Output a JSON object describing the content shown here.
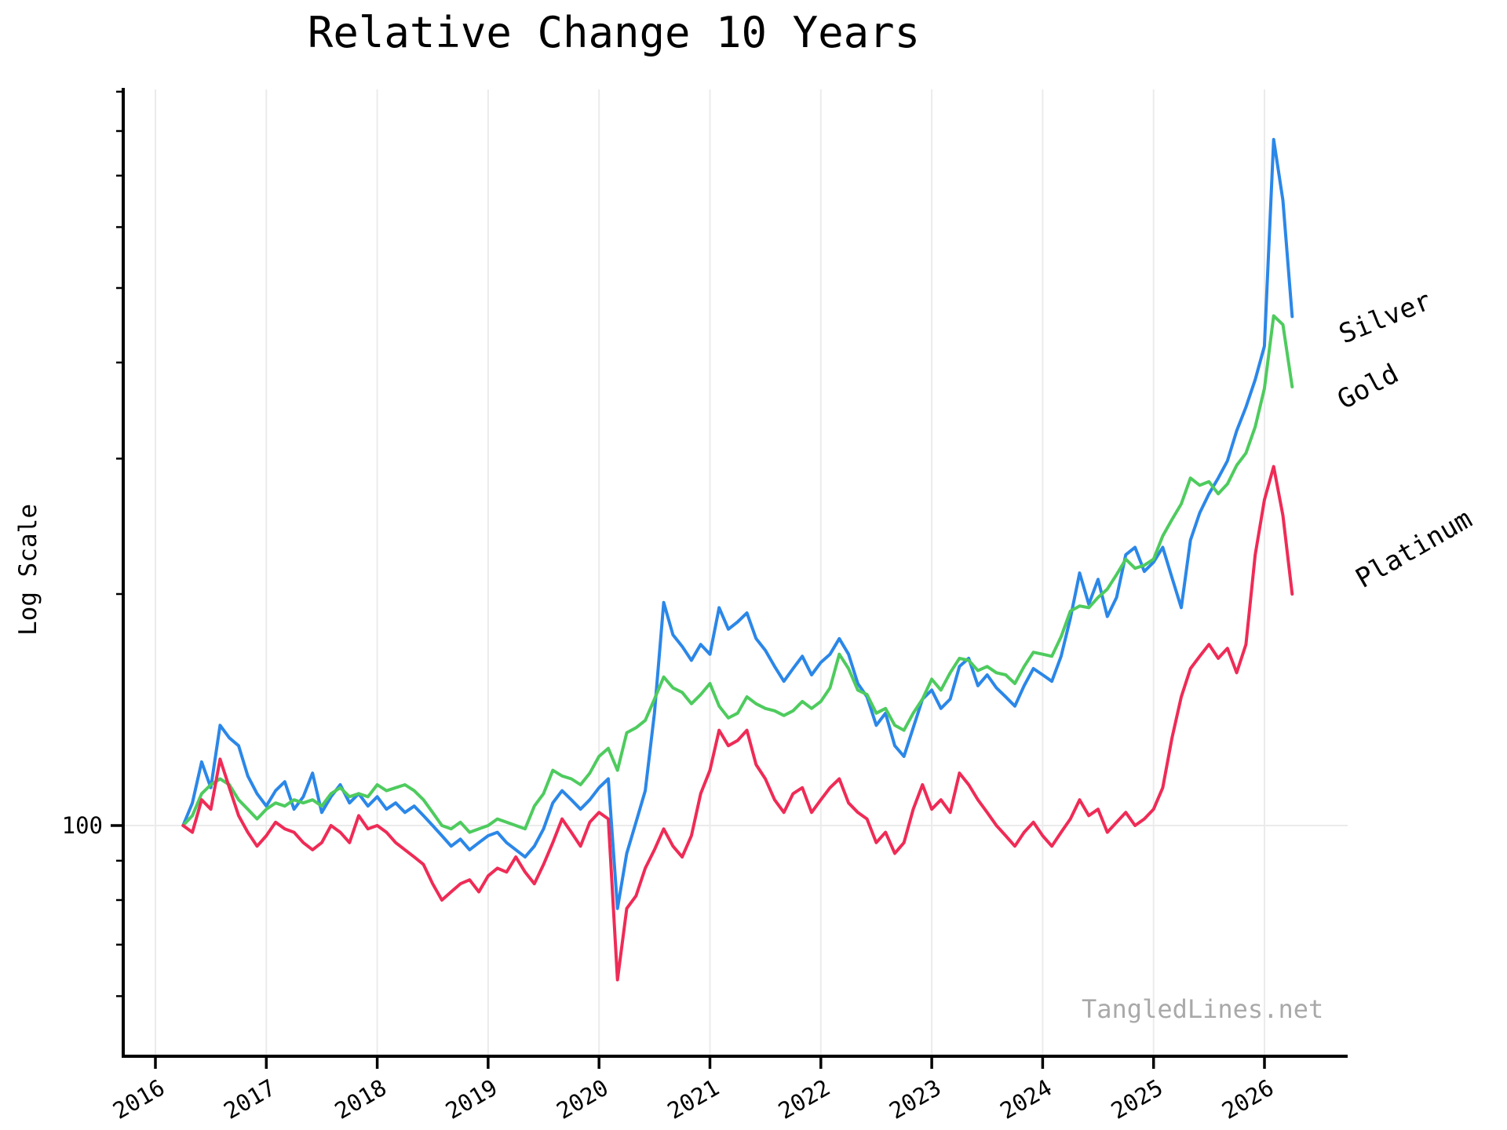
{
  "title": "Relative Change 10 Years",
  "watermark": "TangledLines.net",
  "y_axis": {
    "label": "Log Scale",
    "scale": "log",
    "major_tick_label": "100",
    "major_ticks": [
      100
    ],
    "minor_ticks": [
      50,
      60,
      70,
      80,
      90,
      200,
      300,
      400,
      500,
      600,
      700,
      800,
      900
    ],
    "range": [
      50,
      905
    ]
  },
  "x_axis": {
    "tick_labels": [
      "2016",
      "2017",
      "2018",
      "2019",
      "2020",
      "2021",
      "2022",
      "2023",
      "2024",
      "2025",
      "2026"
    ],
    "rotation_deg": -30,
    "range": [
      2015.62,
      2026.74
    ]
  },
  "colors": {
    "silver": "#2B87E8",
    "gold": "#4ECB5E",
    "platinum": "#EF2B56",
    "grid": "#EBEBEB",
    "axis": "#000000",
    "watermark": "#A9A9A9"
  },
  "chart_data": {
    "type": "line",
    "title": "Relative Change 10 Years",
    "xlabel": "",
    "ylabel": "Log Scale",
    "yscale": "log",
    "grid": "major-ticks-only",
    "legend_position": "right-of-plot, rotated labels at line ends",
    "xlim": [
      2015.62,
      2026.74
    ],
    "ylim": [
      50,
      905
    ],
    "x_ticks": [
      2016,
      2017,
      2018,
      2019,
      2020,
      2021,
      2022,
      2023,
      2024,
      2025,
      2026
    ],
    "y_ticks_labeled": [
      100
    ],
    "y_ticks_minor": [
      50,
      60,
      70,
      80,
      90,
      200,
      300,
      400,
      500,
      600,
      700,
      800,
      900
    ],
    "x_start": 2016.25,
    "x_step": 0.08333,
    "index_base": 100,
    "series": [
      {
        "name": "Silver",
        "color": "#2B87E8",
        "values": [
          100,
          107,
          121,
          112,
          135,
          130,
          127,
          116,
          110,
          106,
          111,
          114,
          105,
          109,
          117,
          104,
          109,
          113,
          107,
          110,
          106,
          109,
          105,
          107,
          104,
          106,
          103,
          100,
          97,
          94,
          96,
          93,
          95,
          97,
          98,
          95,
          93,
          91,
          94,
          99,
          107,
          111,
          108,
          105,
          108,
          112,
          115,
          78,
          92,
          101,
          111,
          140,
          195,
          177,
          171,
          164,
          172,
          167,
          192,
          180,
          184,
          189,
          175,
          169,
          161,
          154,
          160,
          166,
          157,
          163,
          167,
          175,
          167,
          153,
          147,
          135,
          140,
          127,
          123,
          134,
          146,
          150,
          142,
          146,
          161,
          165,
          152,
          157,
          151,
          147,
          143,
          152,
          160,
          157,
          154,
          166,
          186,
          213,
          194,
          209,
          187,
          198,
          225,
          230,
          214,
          220,
          230,
          210,
          192,
          235,
          255,
          270,
          283,
          298,
          326,
          350,
          380,
          420,
          780,
          650,
          459
        ]
      },
      {
        "name": "Gold",
        "color": "#4ECB5E",
        "values": [
          100,
          103,
          110,
          113,
          115,
          113,
          108,
          105,
          102,
          105,
          107,
          106,
          108,
          107,
          108,
          106,
          110,
          112,
          109,
          110,
          109,
          113,
          111,
          112,
          113,
          111,
          108,
          104,
          100,
          99,
          101,
          98,
          99,
          100,
          102,
          101,
          100,
          99,
          106,
          110,
          118,
          116,
          115,
          113,
          117,
          123,
          126,
          118,
          132,
          134,
          137,
          146,
          156,
          151,
          149,
          144,
          148,
          153,
          143,
          138,
          140,
          147,
          144,
          142,
          141,
          139,
          141,
          145,
          142,
          145,
          151,
          167,
          160,
          150,
          148,
          140,
          142,
          135,
          133,
          140,
          146,
          155,
          150,
          158,
          165,
          164,
          159,
          161,
          158,
          157,
          153,
          161,
          168,
          167,
          166,
          176,
          190,
          193,
          192,
          198,
          203,
          212,
          222,
          216,
          218,
          222,
          238,
          250,
          262,
          283,
          277,
          280,
          270,
          278,
          294,
          305,
          330,
          370,
          460,
          448,
          372
        ]
      },
      {
        "name": "Platinum",
        "color": "#EF2B56",
        "values": [
          100,
          98,
          108,
          105,
          122,
          112,
          103,
          98,
          94,
          97,
          101,
          99,
          98,
          95,
          93,
          95,
          100,
          98,
          95,
          103,
          99,
          100,
          98,
          95,
          93,
          91,
          89,
          84,
          80,
          82,
          84,
          85,
          82,
          86,
          88,
          87,
          91,
          87,
          84,
          89,
          95,
          102,
          98,
          94,
          101,
          104,
          102,
          63,
          78,
          81,
          88,
          93,
          99,
          94,
          91,
          97,
          110,
          118,
          133,
          127,
          129,
          133,
          120,
          115,
          108,
          104,
          110,
          112,
          104,
          108,
          112,
          115,
          107,
          104,
          102,
          95,
          98,
          92,
          95,
          105,
          113,
          105,
          108,
          104,
          117,
          113,
          108,
          104,
          100,
          97,
          94,
          98,
          101,
          97,
          94,
          98,
          102,
          108,
          103,
          105,
          98,
          101,
          104,
          100,
          102,
          105,
          112,
          130,
          147,
          160,
          166,
          172,
          165,
          170,
          158,
          172,
          225,
          265,
          293,
          253,
          200
        ]
      }
    ]
  }
}
